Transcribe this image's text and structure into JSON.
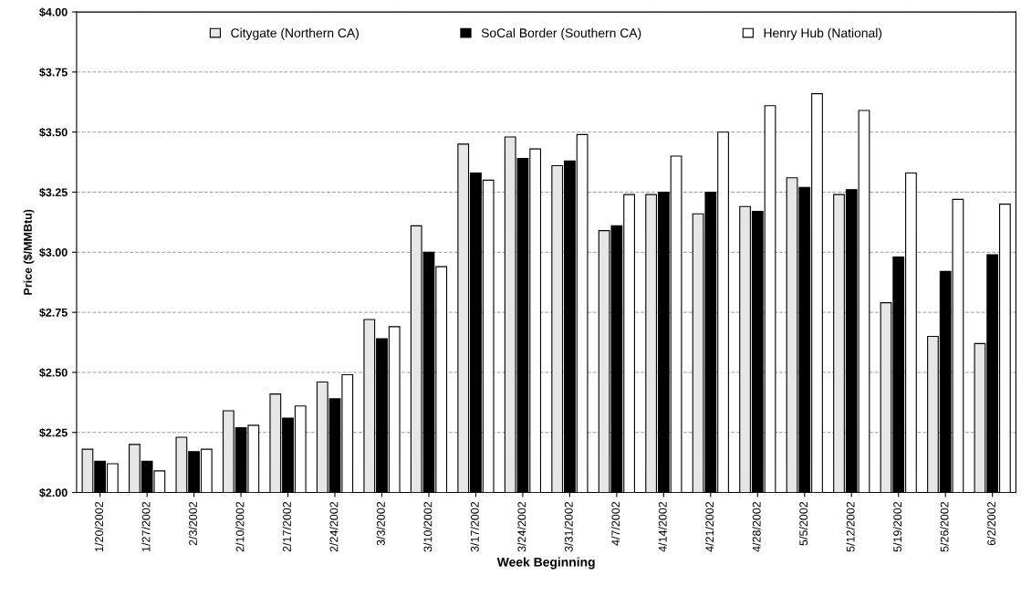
{
  "chart_data": {
    "type": "bar",
    "xlabel": "Week Beginning",
    "ylabel": "Price ($/MMBtu)",
    "categories": [
      "1/20/2002",
      "1/27/2002",
      "2/3/2002",
      "2/10/2002",
      "2/17/2002",
      "2/24/2002",
      "3/3/2002",
      "3/10/2002",
      "3/17/2002",
      "3/24/2002",
      "3/31/2002",
      "4/7/2002",
      "4/14/2002",
      "4/21/2002",
      "4/28/2002",
      "5/5/2002",
      "5/12/2002",
      "5/19/2002",
      "5/26/2002",
      "6/2/2002"
    ],
    "series": [
      {
        "name": "Citygate (Northern CA)",
        "color": "#e6e6e6",
        "values": [
          2.18,
          2.2,
          2.23,
          2.34,
          2.41,
          2.46,
          2.72,
          3.11,
          3.45,
          3.48,
          3.36,
          3.09,
          3.24,
          3.16,
          3.19,
          3.31,
          3.24,
          2.79,
          2.65,
          2.62
        ]
      },
      {
        "name": "SoCal Border (Southern CA)",
        "color": "#000000",
        "values": [
          2.13,
          2.13,
          2.17,
          2.27,
          2.31,
          2.39,
          2.64,
          3.0,
          3.33,
          3.39,
          3.38,
          3.11,
          3.25,
          3.25,
          3.17,
          3.27,
          3.26,
          2.98,
          2.92,
          2.99
        ]
      },
      {
        "name": "Henry Hub (National)",
        "color": "#ffffff",
        "values": [
          2.12,
          2.09,
          2.18,
          2.28,
          2.36,
          2.49,
          2.69,
          2.94,
          3.3,
          3.43,
          3.49,
          3.24,
          3.4,
          3.5,
          3.61,
          3.66,
          3.59,
          3.33,
          3.22,
          3.2
        ]
      }
    ],
    "ylim": [
      2.0,
      4.0
    ],
    "yticks": [
      {
        "value": 2.0,
        "label": "$2.00"
      },
      {
        "value": 2.25,
        "label": "$2.25"
      },
      {
        "value": 2.5,
        "label": "$2.50"
      },
      {
        "value": 2.75,
        "label": "$2.75"
      },
      {
        "value": 3.0,
        "label": "$3.00"
      },
      {
        "value": 3.25,
        "label": "$3.25"
      },
      {
        "value": 3.5,
        "label": "$3.50"
      },
      {
        "value": 3.75,
        "label": "$3.75"
      },
      {
        "value": 4.0,
        "label": "$4.00"
      }
    ],
    "grid": "y",
    "legend": "top"
  }
}
